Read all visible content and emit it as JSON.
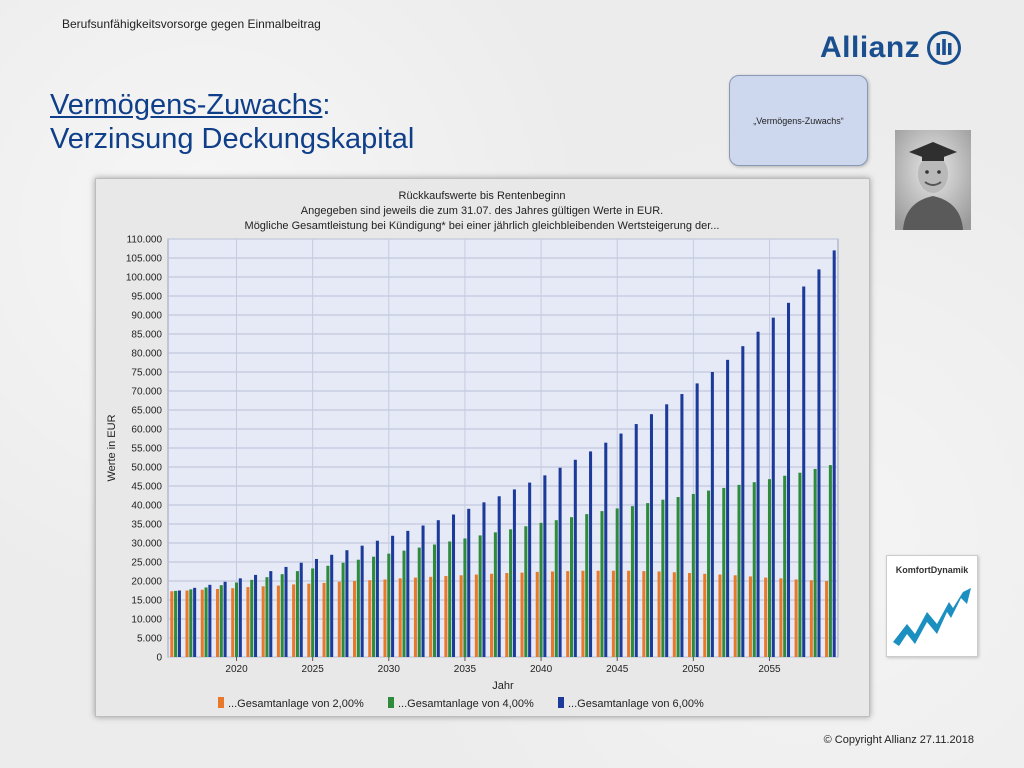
{
  "header": {
    "topline": "Berufsunfähigkeitsvorsorge gegen Einmalbeitrag",
    "brand": "Allianz",
    "title_main": "Vermögens-Zuwachs",
    "title_colon": ":",
    "title_sub": "Verzinsung Deckungskapital"
  },
  "bubble": {
    "text": "„Vermögens-Zuwachs“"
  },
  "komfort": {
    "label": "KomfortDynamik"
  },
  "footer": {
    "copyright": "© Copyright Allianz 27.11.2018"
  },
  "colors": {
    "series_2": "#e8782a",
    "series_4": "#2e8b3c",
    "series_6": "#1c3a9a",
    "plot_bg": "#e6eaf6",
    "grid": "#b8c0d8",
    "title": "#103f8a",
    "brand": "#1a4f8f"
  },
  "icons": {
    "brand_mark": "allianz-eagle-icon",
    "avatar": "graduate-photo-icon",
    "trend": "trend-arrow-icon"
  },
  "chart_data": {
    "type": "bar",
    "title": "Rückkaufswerte bis Rentenbeginn",
    "subtitle": [
      "Angegeben sind jeweils die zum 31.07. des Jahres gültigen Werte in EUR.",
      "Mögliche Gesamtleistung bei Kündigung* bei einer jährlich gleichbleibenden Wertsteigerung der..."
    ],
    "xlabel": "Jahr",
    "ylabel": "Werte in EUR",
    "ylim": [
      0,
      110000
    ],
    "yticks": [
      0,
      5000,
      10000,
      15000,
      20000,
      25000,
      30000,
      35000,
      40000,
      45000,
      50000,
      55000,
      60000,
      65000,
      70000,
      75000,
      80000,
      85000,
      90000,
      95000,
      100000,
      105000,
      110000
    ],
    "ytick_labels": [
      "0",
      "5.000",
      "10.000",
      "15.000",
      "20.000",
      "25.000",
      "30.000",
      "35.000",
      "40.000",
      "45.000",
      "50.000",
      "55.000",
      "60.000",
      "65.000",
      "70.000",
      "75.000",
      "80.000",
      "85.000",
      "90.000",
      "95.000",
      "100.000",
      "105.000",
      "110.000"
    ],
    "xticks": [
      2020,
      2025,
      2030,
      2035,
      2040,
      2045,
      2050,
      2055
    ],
    "xrange": [
      2015.5,
      2059.5
    ],
    "grid": true,
    "legend": "bottom",
    "x": [
      2016,
      2017,
      2018,
      2019,
      2020,
      2021,
      2022,
      2023,
      2024,
      2025,
      2026,
      2027,
      2028,
      2029,
      2030,
      2031,
      2032,
      2033,
      2034,
      2035,
      2036,
      2037,
      2038,
      2039,
      2040,
      2041,
      2042,
      2043,
      2044,
      2045,
      2046,
      2047,
      2048,
      2049,
      2050,
      2051,
      2052,
      2053,
      2054,
      2055,
      2056,
      2057,
      2058,
      2059
    ],
    "series": [
      {
        "name": "...Gesamtanlage von 2,00%",
        "color": "#e8782a",
        "values": [
          17300,
          17500,
          17700,
          17900,
          18100,
          18400,
          18600,
          18800,
          19100,
          19300,
          19500,
          19800,
          20000,
          20200,
          20400,
          20700,
          20900,
          21100,
          21300,
          21500,
          21700,
          21900,
          22100,
          22200,
          22400,
          22500,
          22600,
          22700,
          22700,
          22700,
          22700,
          22600,
          22500,
          22300,
          22100,
          21900,
          21700,
          21500,
          21200,
          20900,
          20700,
          20400,
          20200,
          20000
        ]
      },
      {
        "name": "...Gesamtanlage von 4,00%",
        "color": "#2e8b3c",
        "values": [
          17400,
          17800,
          18300,
          18900,
          19600,
          20300,
          21000,
          21800,
          22600,
          23300,
          24000,
          24800,
          25600,
          26400,
          27200,
          28000,
          28800,
          29600,
          30400,
          31200,
          32000,
          32800,
          33600,
          34400,
          35300,
          36000,
          36800,
          37600,
          38400,
          39100,
          39700,
          40500,
          41400,
          42100,
          42900,
          43800,
          44500,
          45300,
          46000,
          46800,
          47700,
          48500,
          49500,
          50500
        ]
      },
      {
        "name": "...Gesamtanlage von 6,00%",
        "color": "#1c3a9a",
        "values": [
          17500,
          18200,
          19000,
          19800,
          20700,
          21600,
          22600,
          23700,
          24800,
          25800,
          26900,
          28100,
          29300,
          30600,
          31900,
          33200,
          34600,
          36000,
          37500,
          39000,
          40700,
          42300,
          44100,
          45900,
          47800,
          49800,
          51900,
          54100,
          56400,
          58800,
          61300,
          63900,
          66500,
          69200,
          72000,
          75000,
          78200,
          81800,
          85600,
          89300,
          93200,
          97500,
          102000,
          107000
        ]
      }
    ]
  }
}
